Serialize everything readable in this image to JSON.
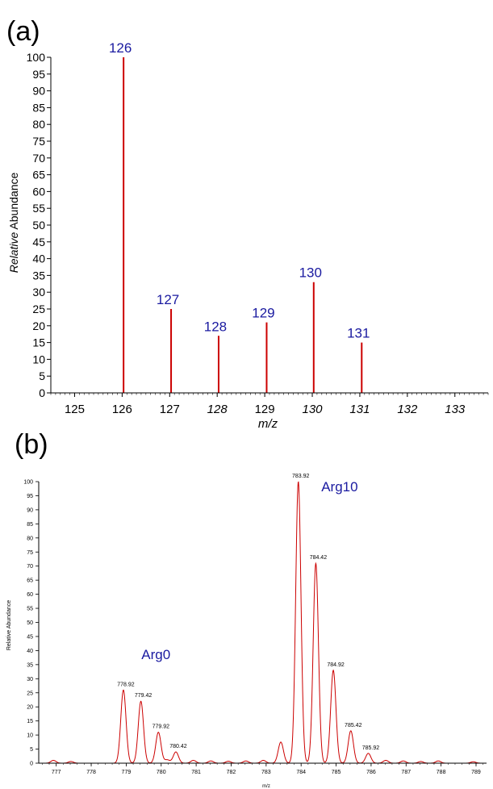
{
  "colors": {
    "trace": "#cc0000",
    "peak_label": "#1a1aa0",
    "axis": "#000000"
  },
  "chart_data": [
    {
      "type": "line",
      "panel_label": "(a)",
      "xlabel": "m/z",
      "ylabel_italic": "Relative",
      "ylabel_rest": " Abundance",
      "xlim": [
        124.5,
        133.7
      ],
      "ylim": [
        0,
        100
      ],
      "x_ticks": [
        125,
        126,
        127,
        128,
        129,
        130,
        131,
        132,
        133
      ],
      "x_tick_labels": [
        "125",
        "126",
        "127",
        "128",
        "129",
        "130",
        "131",
        "132",
        "133"
      ],
      "y_ticks": [
        0,
        5,
        10,
        15,
        20,
        25,
        30,
        35,
        40,
        45,
        50,
        55,
        60,
        65,
        70,
        75,
        80,
        85,
        90,
        95,
        100
      ],
      "y_tick_labels": [
        "0",
        "5",
        "10",
        "15",
        "20",
        "25",
        "30",
        "35",
        "40",
        "45",
        "50",
        "55",
        "60",
        "65",
        "70",
        "75",
        "80",
        "85",
        "90",
        "95",
        "100"
      ],
      "peaks": [
        {
          "x": 126.03,
          "y": 100,
          "label": "126"
        },
        {
          "x": 127.03,
          "y": 25,
          "label": "127"
        },
        {
          "x": 128.03,
          "y": 17,
          "label": "128"
        },
        {
          "x": 129.04,
          "y": 21,
          "label": "129"
        },
        {
          "x": 130.03,
          "y": 33,
          "label": "130"
        },
        {
          "x": 131.04,
          "y": 15,
          "label": "131"
        }
      ],
      "grid": false
    },
    {
      "type": "line",
      "panel_label": "(b)",
      "xlabel": "m/z",
      "ylabel": "Relative Abundance",
      "xlim": [
        776.5,
        789.3
      ],
      "ylim": [
        0,
        100
      ],
      "x_ticks": [
        777,
        778,
        779,
        780,
        781,
        782,
        783,
        784,
        785,
        786,
        787,
        788,
        789
      ],
      "x_tick_labels": [
        "777",
        "778",
        "779",
        "780",
        "781",
        "782",
        "783",
        "784",
        "785",
        "786",
        "787",
        "788",
        "789"
      ],
      "y_ticks": [
        0,
        5,
        10,
        15,
        20,
        25,
        30,
        35,
        40,
        45,
        50,
        55,
        60,
        65,
        70,
        75,
        80,
        85,
        90,
        95,
        100
      ],
      "y_tick_labels": [
        "0",
        "5",
        "10",
        "15",
        "20",
        "25",
        "30",
        "35",
        "40",
        "45",
        "50",
        "55",
        "60",
        "65",
        "70",
        "75",
        "80",
        "85",
        "90",
        "95",
        "100"
      ],
      "peaks": [
        {
          "x": 776.92,
          "y": 1,
          "label": ""
        },
        {
          "x": 777.42,
          "y": 0.6,
          "label": ""
        },
        {
          "x": 778.92,
          "y": 26,
          "label": "778.92"
        },
        {
          "x": 779.42,
          "y": 22,
          "label": "779.42"
        },
        {
          "x": 779.92,
          "y": 11,
          "label": "779.92"
        },
        {
          "x": 780.17,
          "y": 1.2,
          "label": ""
        },
        {
          "x": 780.42,
          "y": 4,
          "label": "780.42"
        },
        {
          "x": 780.92,
          "y": 1,
          "label": ""
        },
        {
          "x": 781.42,
          "y": 0.8,
          "label": ""
        },
        {
          "x": 781.92,
          "y": 0.7,
          "label": ""
        },
        {
          "x": 782.42,
          "y": 0.8,
          "label": ""
        },
        {
          "x": 782.92,
          "y": 1,
          "label": ""
        },
        {
          "x": 783.42,
          "y": 7.5,
          "label": ""
        },
        {
          "x": 783.92,
          "y": 100,
          "label": "783.92"
        },
        {
          "x": 784.42,
          "y": 71,
          "label": "784.42"
        },
        {
          "x": 784.92,
          "y": 33,
          "label": "784.92"
        },
        {
          "x": 785.42,
          "y": 11.5,
          "label": "785.42"
        },
        {
          "x": 785.92,
          "y": 3.5,
          "label": "785.92"
        },
        {
          "x": 786.42,
          "y": 1,
          "label": ""
        },
        {
          "x": 786.92,
          "y": 0.8,
          "label": ""
        },
        {
          "x": 787.42,
          "y": 0.6,
          "label": ""
        },
        {
          "x": 787.92,
          "y": 0.8,
          "label": ""
        },
        {
          "x": 788.92,
          "y": 0.5,
          "label": ""
        }
      ],
      "annotations": [
        {
          "text": "Arg0",
          "x": 779.85,
          "y": 37
        },
        {
          "text": "Arg10",
          "x": 785.1,
          "y": 96.5
        }
      ],
      "grid": false
    }
  ]
}
